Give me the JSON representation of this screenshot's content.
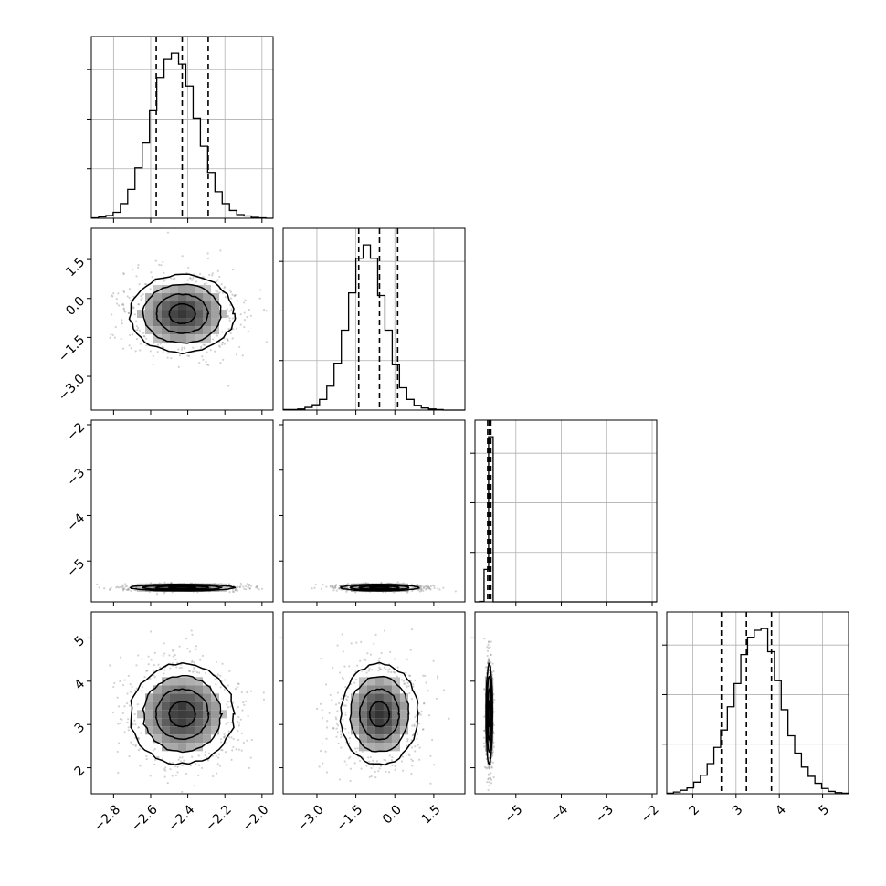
{
  "chart_data": {
    "type": "corner",
    "title": "",
    "params": [
      {
        "id": "p0",
        "label": "",
        "range": [
          -2.92,
          -1.94
        ],
        "ticks": [
          -2.8,
          -2.6,
          -2.4,
          -2.2,
          -2.0
        ],
        "tick_labels": [
          "−2.8",
          "−2.6",
          "−2.4",
          "−2.2",
          "−2.0"
        ],
        "quantiles": [
          -2.57,
          -2.43,
          -2.29
        ]
      },
      {
        "id": "p1",
        "label": "",
        "range": [
          -4.3,
          2.7
        ],
        "ticks": [
          -3.0,
          -1.5,
          0.0,
          1.5
        ],
        "tick_labels": [
          "−3.0",
          "−1.5",
          "0.0",
          "1.5"
        ],
        "quantiles": [
          -1.39,
          -0.59,
          0.11
        ]
      },
      {
        "id": "p2",
        "label": "",
        "range": [
          -5.9,
          -1.9
        ],
        "ticks": [
          -5,
          -4,
          -3,
          -2
        ],
        "tick_labels": [
          "−5",
          "−4",
          "−3",
          "−2"
        ],
        "quantiles": [
          -5.62,
          -5.585,
          -5.55
        ]
      },
      {
        "id": "p3",
        "label": "",
        "range": [
          1.4,
          5.6
        ],
        "ticks": [
          2,
          3,
          4,
          5
        ],
        "tick_labels": [
          "2",
          "3",
          "4",
          "5"
        ],
        "quantiles": [
          2.66,
          3.24,
          3.82
        ]
      }
    ],
    "histograms": [
      {
        "param": "p0",
        "bin_edges_range": [
          -2.92,
          -1.94
        ],
        "counts": [
          1,
          3,
          6,
          13,
          32,
          63,
          110,
          164,
          236,
          307,
          346,
          360,
          336,
          288,
          218,
          157,
          100,
          58,
          32,
          17,
          8,
          5,
          2,
          1,
          0
        ]
      },
      {
        "param": "p1",
        "bin_edges_range": [
          -4.3,
          2.7
        ],
        "counts": [
          1,
          1,
          2,
          5,
          10,
          20,
          45,
          88,
          150,
          220,
          285,
          310,
          285,
          215,
          150,
          85,
          42,
          20,
          9,
          4,
          2,
          1,
          0,
          0,
          0
        ]
      },
      {
        "param": "p2",
        "bin_edges_range": [
          -5.9,
          -1.9
        ],
        "counts": [
          0,
          1,
          82,
          416,
          0,
          0,
          0,
          0,
          0,
          0,
          0,
          0,
          0,
          0,
          0,
          0,
          0,
          0,
          0,
          0,
          0,
          0,
          0,
          0,
          0,
          0,
          0,
          0,
          0,
          0,
          0,
          0,
          0,
          0,
          0,
          0,
          0,
          0,
          0,
          0
        ]
      },
      {
        "param": "p3",
        "bin_edges_range": [
          1.4,
          5.6
        ],
        "counts": [
          1,
          3,
          6,
          10,
          20,
          32,
          52,
          80,
          110,
          150,
          190,
          240,
          270,
          282,
          285,
          245,
          195,
          145,
          100,
          70,
          46,
          30,
          18,
          9,
          4,
          2,
          1
        ]
      }
    ],
    "pairs": [
      {
        "x": "p1",
        "y": "p0"
      },
      {
        "x": "p2",
        "y": "p0"
      },
      {
        "x": "p2",
        "y": "p1"
      },
      {
        "x": "p3",
        "y": "p0"
      },
      {
        "x": "p3",
        "y": "p1"
      },
      {
        "x": "p3",
        "y": "p2"
      }
    ],
    "pair_stats": {
      "p0": {
        "center": -2.43,
        "sigma": 0.14
      },
      "p1": {
        "center": -0.59,
        "sigma": 0.75
      },
      "p2": {
        "center": -5.585,
        "sigma": 0.035
      },
      "p3": {
        "center": 3.24,
        "sigma": 0.58
      }
    },
    "contour_levels_sigma": [
      0.5,
      1.0,
      1.5,
      2.0
    ],
    "colors": {
      "line": "#000000",
      "density_dark": "#2e2e2e",
      "density_light": "#d9d9d9",
      "points": "#7f7f7f",
      "grid": "#b0b0b0"
    },
    "grid": true,
    "legend": "none"
  }
}
